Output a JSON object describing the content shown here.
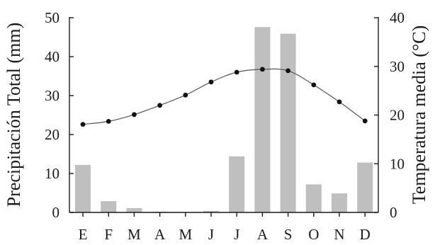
{
  "chart_data": {
    "type": "bar+line",
    "categories": [
      "E",
      "F",
      "M",
      "A",
      "M",
      "J",
      "J",
      "A",
      "S",
      "O",
      "N",
      "D"
    ],
    "series": [
      {
        "name": "Precipitación Total (mm)",
        "type": "bar",
        "axis": "left",
        "values": [
          12.2,
          2.9,
          1.1,
          0.2,
          0.0,
          0.4,
          14.4,
          47.6,
          45.9,
          7.2,
          4.9,
          12.8
        ]
      },
      {
        "name": "Temperatura media (°C)",
        "type": "line",
        "axis": "right",
        "values": [
          18.1,
          18.7,
          20.1,
          22.0,
          24.1,
          26.8,
          28.8,
          29.4,
          29.1,
          26.2,
          22.7,
          18.8
        ]
      }
    ],
    "ylabel_left": "Precipitación Total (mm)",
    "ylabel_right": "Temperatura media (°C)",
    "ylim_left": [
      0,
      50
    ],
    "ylim_right": [
      0,
      40
    ],
    "yticks_left": [
      "0",
      "10",
      "20",
      "30",
      "40",
      "50"
    ],
    "yticks_right": [
      "0",
      "10",
      "20",
      "30",
      "40"
    ],
    "grid": false,
    "colors": {
      "bar": "#bfbfbf",
      "line": "#555555",
      "marker": "#111111",
      "axis": "#1a1a1a"
    }
  }
}
